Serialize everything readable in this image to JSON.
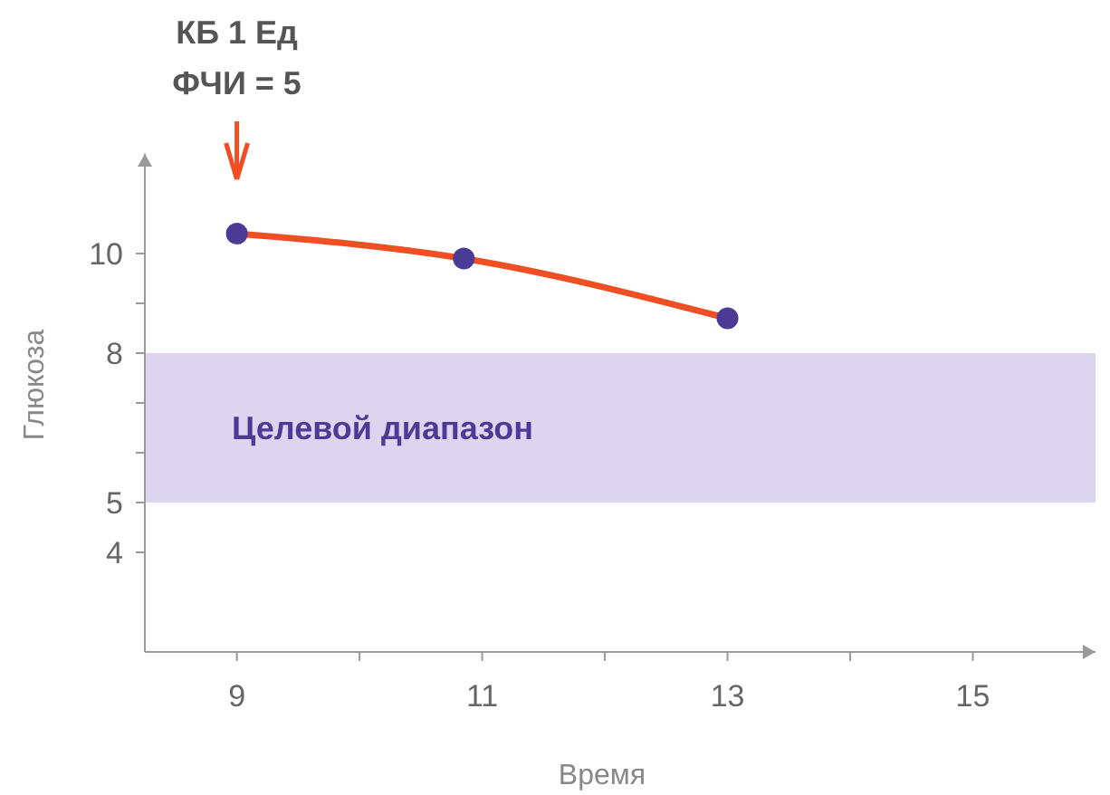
{
  "chart_data": {
    "type": "line",
    "xlabel": "Время",
    "ylabel": "Глюкоза",
    "x": [
      9,
      10.85,
      13
    ],
    "series": [
      {
        "color": "#f04e23",
        "values": [
          10.4,
          9.9,
          8.7
        ]
      }
    ],
    "marker": "circle",
    "line_style": "solid",
    "grid": false,
    "xlim": [
      8.25,
      16
    ],
    "xticks": [
      9,
      {
        "value": 10,
        "label": null
      },
      11,
      {
        "value": 12,
        "label": null
      },
      13,
      {
        "value": 14,
        "label": null
      },
      15
    ],
    "ylim": [
      2,
      12
    ],
    "yticks": [
      4,
      5,
      {
        "value": 6,
        "label": null
      },
      {
        "value": 7,
        "label": null
      },
      8,
      {
        "value": 9,
        "label": null
      },
      10
    ],
    "bands": [
      {
        "axis": "y",
        "from": 5,
        "to": 8,
        "label": "Целевой диапазон",
        "color": "#ddd5ef"
      }
    ],
    "annotations": [
      "КБ 1 Ед",
      "ФЧИ = 5"
    ]
  }
}
